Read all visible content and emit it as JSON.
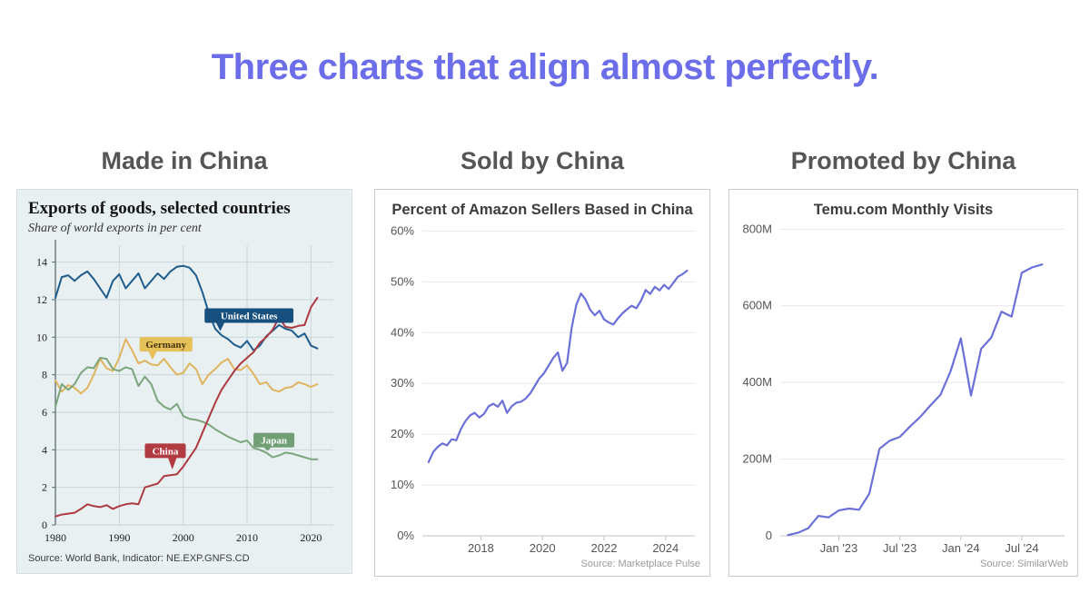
{
  "page": {
    "title": "Three charts that align almost perfectly.",
    "title_color": "#6c6de9"
  },
  "chart_data": [
    {
      "id": "exports",
      "type": "line",
      "panel_heading": "Made in China",
      "title": "Exports of goods, selected countries",
      "subtitle": "Share of world exports in per cent",
      "source": "Source: World Bank, Indicator: NE.EXP.GNFS.CD",
      "background": "#e9f0f1",
      "grid": "both",
      "grid_color": "#c9d5d8",
      "tick_color": "#1c1c1c",
      "tick_font": 12,
      "spine": true,
      "spine_color": "#5b6b72",
      "xlim": [
        1980,
        2023.5
      ],
      "ylim": [
        0,
        14.9
      ],
      "xticks": [
        1980,
        1990,
        2000,
        2010,
        2020
      ],
      "yticks": [
        0,
        2,
        4,
        6,
        8,
        10,
        12,
        14
      ],
      "x_start": 1980,
      "x_step": 1,
      "series": [
        {
          "name": "United States",
          "color": "#1e5c8d",
          "values": [
            12.1,
            13.2,
            13.3,
            13.0,
            13.3,
            13.5,
            13.1,
            12.6,
            12.1,
            13.0,
            13.35,
            12.6,
            13.0,
            13.4,
            12.6,
            13.0,
            13.4,
            13.1,
            13.5,
            13.75,
            13.8,
            13.7,
            13.3,
            12.4,
            11.3,
            10.45,
            10.1,
            9.9,
            9.6,
            9.45,
            9.8,
            9.3,
            9.55,
            10.05,
            10.35,
            10.65,
            10.45,
            10.35,
            10.0,
            10.2,
            9.55,
            9.4
          ],
          "tag": {
            "text": "United States",
            "x": 2010.3,
            "y": 11.15,
            "tail_x": 2005.8,
            "tail_y": 10.32,
            "bg": "#174f7f",
            "fg": "#ffffff"
          }
        },
        {
          "name": "Germany",
          "color": "#e0b45e",
          "values": [
            7.7,
            7.1,
            7.45,
            7.3,
            7.0,
            7.3,
            8.0,
            8.85,
            8.35,
            8.2,
            8.9,
            9.9,
            9.3,
            8.6,
            8.75,
            8.55,
            8.5,
            8.85,
            8.4,
            8.0,
            8.1,
            8.6,
            8.3,
            7.5,
            8.0,
            8.3,
            8.65,
            8.85,
            8.3,
            8.25,
            8.5,
            8.05,
            7.5,
            7.6,
            7.2,
            7.1,
            7.3,
            7.35,
            7.6,
            7.5,
            7.35,
            7.5
          ],
          "tag": {
            "text": "Germany",
            "x": 1997.3,
            "y": 9.62,
            "tail_x": 1995.2,
            "tail_y": 8.8,
            "bg": "#e6c059",
            "fg": "#42350f"
          }
        },
        {
          "name": "Japan",
          "color": "#7ba57d",
          "values": [
            6.3,
            7.5,
            7.2,
            7.5,
            8.1,
            8.4,
            8.35,
            8.9,
            8.85,
            8.3,
            8.2,
            8.4,
            8.3,
            7.4,
            7.9,
            7.5,
            6.6,
            6.3,
            6.15,
            6.45,
            5.8,
            5.65,
            5.6,
            5.5,
            5.35,
            5.1,
            4.9,
            4.7,
            4.55,
            4.4,
            4.5,
            4.1,
            4.0,
            3.85,
            3.6,
            3.7,
            3.85,
            3.8,
            3.7,
            3.6,
            3.5,
            3.5
          ],
          "tag": {
            "text": "Japan",
            "x": 2014.2,
            "y": 4.52,
            "tail_x": 2013.2,
            "tail_y": 3.95,
            "bg": "#6f9f72",
            "fg": "#ffffff"
          }
        },
        {
          "name": "China",
          "color": "#ae3a41",
          "values": [
            0.45,
            0.55,
            0.6,
            0.65,
            0.85,
            1.1,
            1.0,
            0.95,
            1.05,
            0.85,
            1.0,
            1.1,
            1.15,
            1.1,
            2.0,
            2.1,
            2.2,
            2.6,
            2.65,
            2.7,
            3.1,
            3.6,
            4.1,
            4.9,
            5.7,
            6.5,
            7.2,
            7.7,
            8.2,
            8.6,
            8.9,
            9.2,
            9.7,
            10.0,
            10.4,
            11.05,
            10.55,
            10.5,
            10.6,
            10.65,
            11.6,
            12.1
          ],
          "tag": {
            "text": "China",
            "x": 1997.2,
            "y": 3.95,
            "tail_x": 1998.3,
            "tail_y": 2.95,
            "bg": "#b23b42",
            "fg": "#ffffff"
          }
        }
      ]
    },
    {
      "id": "amazon-sellers",
      "type": "line",
      "panel_heading": "Sold by China",
      "title": "Percent of Amazon Sellers Based in China",
      "source": "Source: Marketplace Pulse",
      "background": "#ffffff",
      "grid": "h",
      "grid_color": "#e7e7e8",
      "tick_color": "#555555",
      "tick_font": 13,
      "axis_line": true,
      "axis_color": "#c2c2c2",
      "xlim": [
        2016.1,
        2024.95
      ],
      "ylim": [
        0,
        61.5
      ],
      "xticks": [
        2018,
        2020,
        2022,
        2024
      ],
      "yticks": [
        {
          "v": 0,
          "label": "0%"
        },
        {
          "v": 10,
          "label": "10%"
        },
        {
          "v": 20,
          "label": "20%"
        },
        {
          "v": 30,
          "label": "30%"
        },
        {
          "v": 40,
          "label": "40%"
        },
        {
          "v": 50,
          "label": "50%"
        },
        {
          "v": 60,
          "label": "60%"
        }
      ],
      "x_start": 2016.3,
      "x_step": 0.15,
      "series": [
        {
          "color": "#6b70d8",
          "values": [
            14.5,
            16.5,
            17.5,
            18.2,
            17.8,
            19.0,
            18.8,
            21.0,
            22.6,
            23.7,
            24.2,
            23.3,
            24.0,
            25.5,
            26.0,
            25.4,
            26.6,
            24.2,
            25.5,
            26.2,
            26.4,
            27.0,
            28.0,
            29.5,
            31.0,
            32.0,
            33.5,
            35.0,
            36.1,
            32.5,
            34.0,
            41.0,
            45.5,
            47.7,
            46.5,
            44.5,
            43.4,
            44.3,
            42.6,
            42.0,
            41.6,
            42.8,
            43.8,
            44.6,
            45.3,
            44.8,
            46.3,
            48.4,
            47.6,
            49.0,
            48.3,
            49.4,
            48.6,
            49.8,
            51.0,
            51.5,
            52.2
          ]
        }
      ]
    },
    {
      "id": "temu-visits",
      "type": "line",
      "panel_heading": "Promoted by China",
      "title": "Temu.com Monthly Visits",
      "source": "Source: SimilarWeb",
      "background": "#ffffff",
      "grid": "h",
      "grid_color": "#e7e7e8",
      "tick_color": "#555555",
      "tick_font": 13,
      "axis_line": true,
      "axis_color": "#c2c2c2",
      "xlim": [
        2022.52,
        2024.85
      ],
      "ylim": [
        0,
        815
      ],
      "xticks": [
        {
          "v": 2023.0,
          "label": "Jan '23"
        },
        {
          "v": 2023.5,
          "label": "Jul '23"
        },
        {
          "v": 2024.0,
          "label": "Jan '24"
        },
        {
          "v": 2024.5,
          "label": "Jul '24"
        }
      ],
      "yticks": [
        {
          "v": 0,
          "label": "0"
        },
        {
          "v": 200,
          "label": "200M"
        },
        {
          "v": 400,
          "label": "400M"
        },
        {
          "v": 600,
          "label": "600M"
        },
        {
          "v": 800,
          "label": "800M"
        }
      ],
      "x_start": 2022.583,
      "x_step": 0.08333,
      "series": [
        {
          "color": "#6b70d8",
          "values": [
            2,
            8,
            20,
            52,
            48,
            66,
            71,
            68,
            110,
            227,
            248,
            258,
            285,
            310,
            340,
            368,
            430,
            515,
            366,
            488,
            517,
            585,
            572,
            686,
            700,
            708
          ]
        }
      ]
    }
  ]
}
